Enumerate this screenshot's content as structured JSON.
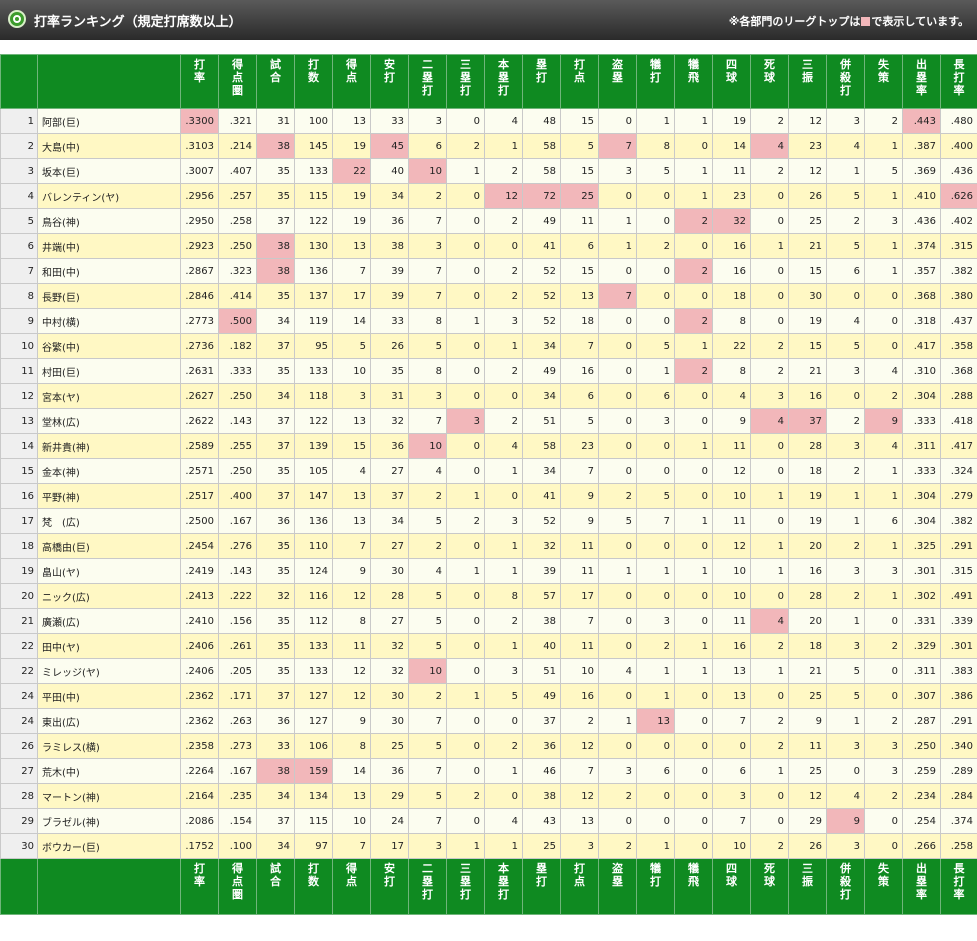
{
  "header": {
    "title": "打率ランキング（規定打席数以上）",
    "note_prefix": "※各部門のリーグトップは",
    "note_suffix": "で表示しています。",
    "logo_icon": "green-ring-icon",
    "highlight_color": "#f2b7ba"
  },
  "columns": [
    {
      "key": "avg",
      "label": "打率"
    },
    {
      "key": "risp",
      "label": "得点圏"
    },
    {
      "key": "g",
      "label": "試合"
    },
    {
      "key": "ab",
      "label": "打数"
    },
    {
      "key": "r",
      "label": "得点"
    },
    {
      "key": "h",
      "label": "安打"
    },
    {
      "key": "d",
      "label": "二塁打"
    },
    {
      "key": "t",
      "label": "三塁打"
    },
    {
      "key": "hr",
      "label": "本塁打"
    },
    {
      "key": "tb",
      "label": "塁打"
    },
    {
      "key": "rbi",
      "label": "打点"
    },
    {
      "key": "sb",
      "label": "盗塁"
    },
    {
      "key": "sh",
      "label": "犠打"
    },
    {
      "key": "sf",
      "label": "犠飛"
    },
    {
      "key": "bb",
      "label": "四球"
    },
    {
      "key": "hbp",
      "label": "死球"
    },
    {
      "key": "so",
      "label": "三振"
    },
    {
      "key": "gdp",
      "label": "併殺打"
    },
    {
      "key": "e",
      "label": "失策"
    },
    {
      "key": "obp",
      "label": "出塁率"
    },
    {
      "key": "slg",
      "label": "長打率"
    }
  ],
  "rows": [
    {
      "rank": "1",
      "name": "阿部(巨)",
      "v": [
        ".3300",
        ".321",
        "31",
        "100",
        "13",
        "33",
        "3",
        "0",
        "4",
        "48",
        "15",
        "0",
        "1",
        "1",
        "19",
        "2",
        "12",
        "3",
        "2",
        ".443",
        ".480"
      ],
      "hl": [
        0,
        19
      ]
    },
    {
      "rank": "2",
      "name": "大島(中)",
      "v": [
        ".3103",
        ".214",
        "38",
        "145",
        "19",
        "45",
        "6",
        "2",
        "1",
        "58",
        "5",
        "7",
        "8",
        "0",
        "14",
        "4",
        "23",
        "4",
        "1",
        ".387",
        ".400"
      ],
      "hl": [
        2,
        5,
        11,
        15
      ]
    },
    {
      "rank": "3",
      "name": "坂本(巨)",
      "v": [
        ".3007",
        ".407",
        "35",
        "133",
        "22",
        "40",
        "10",
        "1",
        "2",
        "58",
        "15",
        "3",
        "5",
        "1",
        "11",
        "2",
        "12",
        "1",
        "5",
        ".369",
        ".436"
      ],
      "hl": [
        4,
        6
      ]
    },
    {
      "rank": "4",
      "name": "バレンティン(ヤ)",
      "v": [
        ".2956",
        ".257",
        "35",
        "115",
        "19",
        "34",
        "2",
        "0",
        "12",
        "72",
        "25",
        "0",
        "0",
        "1",
        "23",
        "0",
        "26",
        "5",
        "1",
        ".410",
        ".626"
      ],
      "hl": [
        8,
        9,
        10,
        20
      ]
    },
    {
      "rank": "5",
      "name": "鳥谷(神)",
      "v": [
        ".2950",
        ".258",
        "37",
        "122",
        "19",
        "36",
        "7",
        "0",
        "2",
        "49",
        "11",
        "1",
        "0",
        "2",
        "32",
        "0",
        "25",
        "2",
        "3",
        ".436",
        ".402"
      ],
      "hl": [
        13,
        14
      ]
    },
    {
      "rank": "6",
      "name": "井端(中)",
      "v": [
        ".2923",
        ".250",
        "38",
        "130",
        "13",
        "38",
        "3",
        "0",
        "0",
        "41",
        "6",
        "1",
        "2",
        "0",
        "16",
        "1",
        "21",
        "5",
        "1",
        ".374",
        ".315"
      ],
      "hl": [
        2
      ]
    },
    {
      "rank": "7",
      "name": "和田(中)",
      "v": [
        ".2867",
        ".323",
        "38",
        "136",
        "7",
        "39",
        "7",
        "0",
        "2",
        "52",
        "15",
        "0",
        "0",
        "2",
        "16",
        "0",
        "15",
        "6",
        "1",
        ".357",
        ".382"
      ],
      "hl": [
        2,
        13
      ]
    },
    {
      "rank": "8",
      "name": "長野(巨)",
      "v": [
        ".2846",
        ".414",
        "35",
        "137",
        "17",
        "39",
        "7",
        "0",
        "2",
        "52",
        "13",
        "7",
        "0",
        "0",
        "18",
        "0",
        "30",
        "0",
        "0",
        ".368",
        ".380"
      ],
      "hl": [
        11
      ]
    },
    {
      "rank": "9",
      "name": "中村(横)",
      "v": [
        ".2773",
        ".500",
        "34",
        "119",
        "14",
        "33",
        "8",
        "1",
        "3",
        "52",
        "18",
        "0",
        "0",
        "2",
        "8",
        "0",
        "19",
        "4",
        "0",
        ".318",
        ".437"
      ],
      "hl": [
        1,
        13
      ]
    },
    {
      "rank": "10",
      "name": "谷繁(中)",
      "v": [
        ".2736",
        ".182",
        "37",
        "95",
        "5",
        "26",
        "5",
        "0",
        "1",
        "34",
        "7",
        "0",
        "5",
        "1",
        "22",
        "2",
        "15",
        "5",
        "0",
        ".417",
        ".358"
      ],
      "hl": []
    },
    {
      "rank": "11",
      "name": "村田(巨)",
      "v": [
        ".2631",
        ".333",
        "35",
        "133",
        "10",
        "35",
        "8",
        "0",
        "2",
        "49",
        "16",
        "0",
        "1",
        "2",
        "8",
        "2",
        "21",
        "3",
        "4",
        ".310",
        ".368"
      ],
      "hl": [
        13
      ]
    },
    {
      "rank": "12",
      "name": "宮本(ヤ)",
      "v": [
        ".2627",
        ".250",
        "34",
        "118",
        "3",
        "31",
        "3",
        "0",
        "0",
        "34",
        "6",
        "0",
        "6",
        "0",
        "4",
        "3",
        "16",
        "0",
        "2",
        ".304",
        ".288"
      ],
      "hl": []
    },
    {
      "rank": "13",
      "name": "堂林(広)",
      "v": [
        ".2622",
        ".143",
        "37",
        "122",
        "13",
        "32",
        "7",
        "3",
        "2",
        "51",
        "5",
        "0",
        "3",
        "0",
        "9",
        "4",
        "37",
        "2",
        "9",
        ".333",
        ".418"
      ],
      "hl": [
        7,
        15,
        16,
        18
      ]
    },
    {
      "rank": "14",
      "name": "新井貴(神)",
      "v": [
        ".2589",
        ".255",
        "37",
        "139",
        "15",
        "36",
        "10",
        "0",
        "4",
        "58",
        "23",
        "0",
        "0",
        "1",
        "11",
        "0",
        "28",
        "3",
        "4",
        ".311",
        ".417"
      ],
      "hl": [
        6
      ]
    },
    {
      "rank": "15",
      "name": "金本(神)",
      "v": [
        ".2571",
        ".250",
        "35",
        "105",
        "4",
        "27",
        "4",
        "0",
        "1",
        "34",
        "7",
        "0",
        "0",
        "0",
        "12",
        "0",
        "18",
        "2",
        "1",
        ".333",
        ".324"
      ],
      "hl": []
    },
    {
      "rank": "16",
      "name": "平野(神)",
      "v": [
        ".2517",
        ".400",
        "37",
        "147",
        "13",
        "37",
        "2",
        "1",
        "0",
        "41",
        "9",
        "2",
        "5",
        "0",
        "10",
        "1",
        "19",
        "1",
        "1",
        ".304",
        ".279"
      ],
      "hl": []
    },
    {
      "rank": "17",
      "name": "梵　(広)",
      "v": [
        ".2500",
        ".167",
        "36",
        "136",
        "13",
        "34",
        "5",
        "2",
        "3",
        "52",
        "9",
        "5",
        "7",
        "1",
        "11",
        "0",
        "19",
        "1",
        "6",
        ".304",
        ".382"
      ],
      "hl": []
    },
    {
      "rank": "18",
      "name": "高橋由(巨)",
      "v": [
        ".2454",
        ".276",
        "35",
        "110",
        "7",
        "27",
        "2",
        "0",
        "1",
        "32",
        "11",
        "0",
        "0",
        "0",
        "12",
        "1",
        "20",
        "2",
        "1",
        ".325",
        ".291"
      ],
      "hl": []
    },
    {
      "rank": "19",
      "name": "畠山(ヤ)",
      "v": [
        ".2419",
        ".143",
        "35",
        "124",
        "9",
        "30",
        "4",
        "1",
        "1",
        "39",
        "11",
        "1",
        "1",
        "1",
        "10",
        "1",
        "16",
        "3",
        "3",
        ".301",
        ".315"
      ],
      "hl": []
    },
    {
      "rank": "20",
      "name": "ニック(広)",
      "v": [
        ".2413",
        ".222",
        "32",
        "116",
        "12",
        "28",
        "5",
        "0",
        "8",
        "57",
        "17",
        "0",
        "0",
        "0",
        "10",
        "0",
        "28",
        "2",
        "1",
        ".302",
        ".491"
      ],
      "hl": []
    },
    {
      "rank": "21",
      "name": "廣瀬(広)",
      "v": [
        ".2410",
        ".156",
        "35",
        "112",
        "8",
        "27",
        "5",
        "0",
        "2",
        "38",
        "7",
        "0",
        "3",
        "0",
        "11",
        "4",
        "20",
        "1",
        "0",
        ".331",
        ".339"
      ],
      "hl": [
        15
      ]
    },
    {
      "rank": "22",
      "name": "田中(ヤ)",
      "v": [
        ".2406",
        ".261",
        "35",
        "133",
        "11",
        "32",
        "5",
        "0",
        "1",
        "40",
        "11",
        "0",
        "2",
        "1",
        "16",
        "2",
        "18",
        "3",
        "2",
        ".329",
        ".301"
      ],
      "hl": []
    },
    {
      "rank": "22",
      "name": "ミレッジ(ヤ)",
      "v": [
        ".2406",
        ".205",
        "35",
        "133",
        "12",
        "32",
        "10",
        "0",
        "3",
        "51",
        "10",
        "4",
        "1",
        "1",
        "13",
        "1",
        "21",
        "5",
        "0",
        ".311",
        ".383"
      ],
      "hl": [
        6
      ]
    },
    {
      "rank": "24",
      "name": "平田(中)",
      "v": [
        ".2362",
        ".171",
        "37",
        "127",
        "12",
        "30",
        "2",
        "1",
        "5",
        "49",
        "16",
        "0",
        "1",
        "0",
        "13",
        "0",
        "25",
        "5",
        "0",
        ".307",
        ".386"
      ],
      "hl": []
    },
    {
      "rank": "24",
      "name": "東出(広)",
      "v": [
        ".2362",
        ".263",
        "36",
        "127",
        "9",
        "30",
        "7",
        "0",
        "0",
        "37",
        "2",
        "1",
        "13",
        "0",
        "7",
        "2",
        "9",
        "1",
        "2",
        ".287",
        ".291"
      ],
      "hl": [
        12
      ]
    },
    {
      "rank": "26",
      "name": "ラミレス(横)",
      "v": [
        ".2358",
        ".273",
        "33",
        "106",
        "8",
        "25",
        "5",
        "0",
        "2",
        "36",
        "12",
        "0",
        "0",
        "0",
        "0",
        "2",
        "11",
        "3",
        "3",
        ".250",
        ".340"
      ],
      "hl": []
    },
    {
      "rank": "27",
      "name": "荒木(中)",
      "v": [
        ".2264",
        ".167",
        "38",
        "159",
        "14",
        "36",
        "7",
        "0",
        "1",
        "46",
        "7",
        "3",
        "6",
        "0",
        "6",
        "1",
        "25",
        "0",
        "3",
        ".259",
        ".289"
      ],
      "hl": [
        2,
        3
      ]
    },
    {
      "rank": "28",
      "name": "マートン(神)",
      "v": [
        ".2164",
        ".235",
        "34",
        "134",
        "13",
        "29",
        "5",
        "2",
        "0",
        "38",
        "12",
        "2",
        "0",
        "0",
        "3",
        "0",
        "12",
        "4",
        "2",
        ".234",
        ".284"
      ],
      "hl": []
    },
    {
      "rank": "29",
      "name": "ブラゼル(神)",
      "v": [
        ".2086",
        ".154",
        "37",
        "115",
        "10",
        "24",
        "7",
        "0",
        "4",
        "43",
        "13",
        "0",
        "0",
        "0",
        "7",
        "0",
        "29",
        "9",
        "0",
        ".254",
        ".374"
      ],
      "hl": [
        17
      ]
    },
    {
      "rank": "30",
      "name": "ボウカー(巨)",
      "v": [
        ".1752",
        ".100",
        "34",
        "97",
        "7",
        "17",
        "3",
        "1",
        "1",
        "25",
        "3",
        "2",
        "1",
        "0",
        "10",
        "2",
        "26",
        "3",
        "0",
        ".266",
        ".258"
      ],
      "hl": []
    }
  ]
}
